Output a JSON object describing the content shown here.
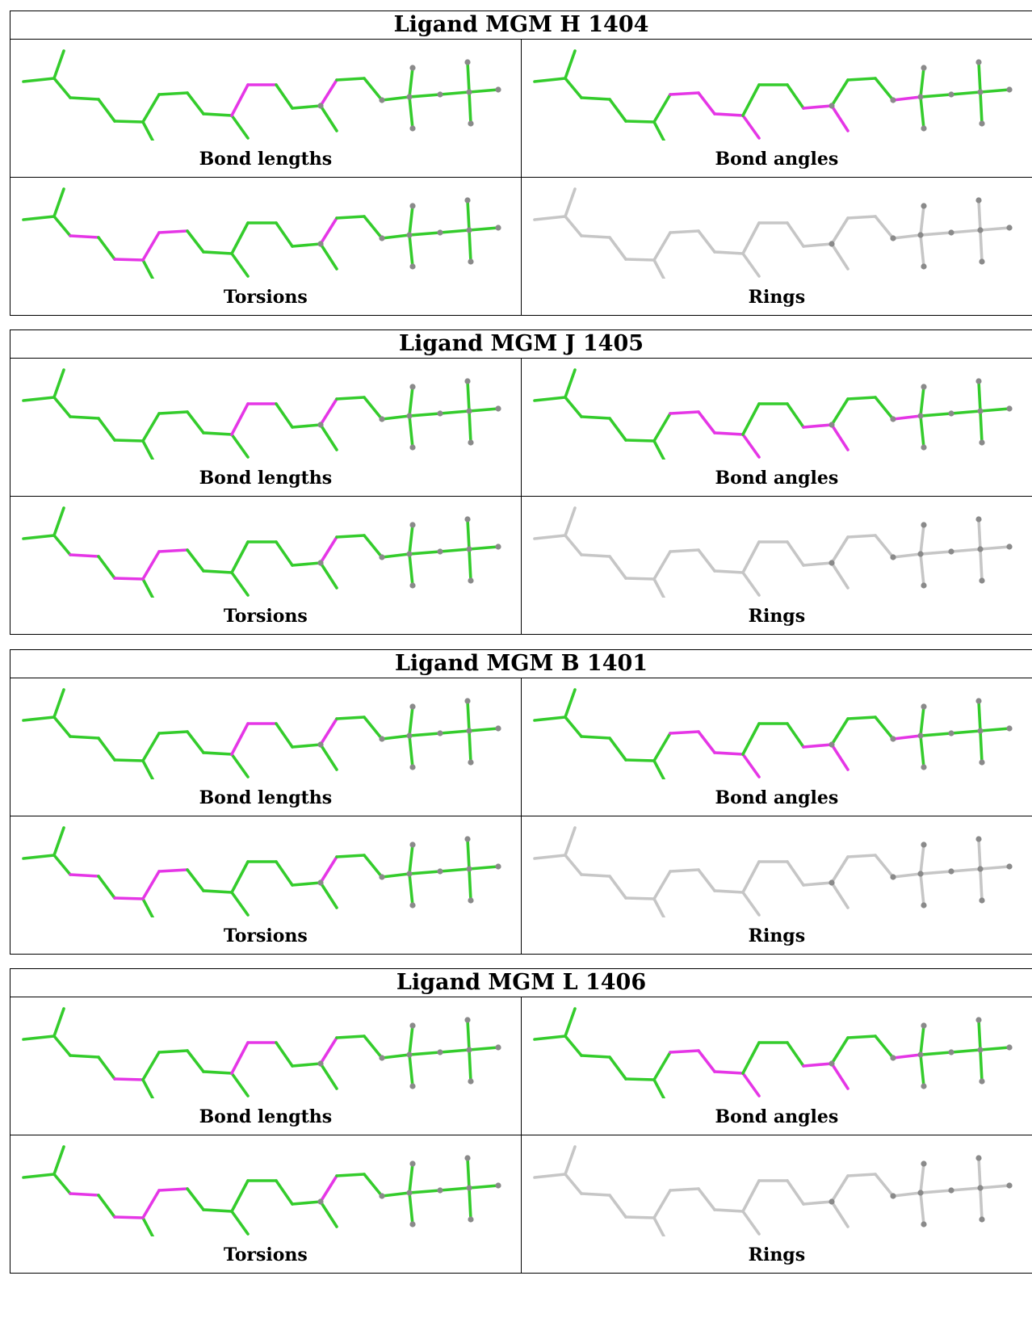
{
  "colors": {
    "ok": "#34cc2c",
    "outlier": "#e536e6",
    "neutral": "#c6c6c6",
    "atom": "#8a8a8a"
  },
  "panel_labels": {
    "bond_lengths": "Bond lengths",
    "bond_angles": "Bond angles",
    "torsions": "Torsions",
    "rings": "Rings"
  },
  "ligands": [
    {
      "title": "Ligand MGM H 1404",
      "panels": {
        "bond_lengths": {
          "default": "ok",
          "outliers": [
            12,
            13,
            17
          ]
        },
        "bond_angles": {
          "default": "ok",
          "outliers": [
            8,
            9,
            10,
            11,
            15,
            16,
            20
          ]
        },
        "torsions": {
          "default": "ok",
          "outliers": [
            3,
            5,
            7,
            8,
            17
          ]
        },
        "rings": {
          "default": "neutral",
          "outliers": []
        }
      }
    },
    {
      "title": "Ligand MGM J 1405",
      "panels": {
        "bond_lengths": {
          "default": "ok",
          "outliers": [
            12,
            13,
            17
          ]
        },
        "bond_angles": {
          "default": "ok",
          "outliers": [
            8,
            9,
            10,
            11,
            15,
            16,
            20
          ]
        },
        "torsions": {
          "default": "ok",
          "outliers": [
            3,
            5,
            7,
            8,
            17
          ]
        },
        "rings": {
          "default": "neutral",
          "outliers": []
        }
      }
    },
    {
      "title": "Ligand MGM B 1401",
      "panels": {
        "bond_lengths": {
          "default": "ok",
          "outliers": [
            12,
            13,
            17
          ]
        },
        "bond_angles": {
          "default": "ok",
          "outliers": [
            8,
            9,
            10,
            11,
            15,
            16,
            20
          ]
        },
        "torsions": {
          "default": "ok",
          "outliers": [
            3,
            5,
            7,
            8,
            17
          ]
        },
        "rings": {
          "default": "neutral",
          "outliers": []
        }
      }
    },
    {
      "title": "Ligand MGM L 1406",
      "panels": {
        "bond_lengths": {
          "default": "ok",
          "outliers": [
            5,
            12,
            13,
            17
          ]
        },
        "bond_angles": {
          "default": "ok",
          "outliers": [
            8,
            9,
            10,
            11,
            15,
            16,
            20
          ]
        },
        "torsions": {
          "default": "ok",
          "outliers": [
            3,
            5,
            7,
            8,
            17
          ]
        },
        "rings": {
          "default": "neutral",
          "outliers": []
        }
      }
    }
  ]
}
